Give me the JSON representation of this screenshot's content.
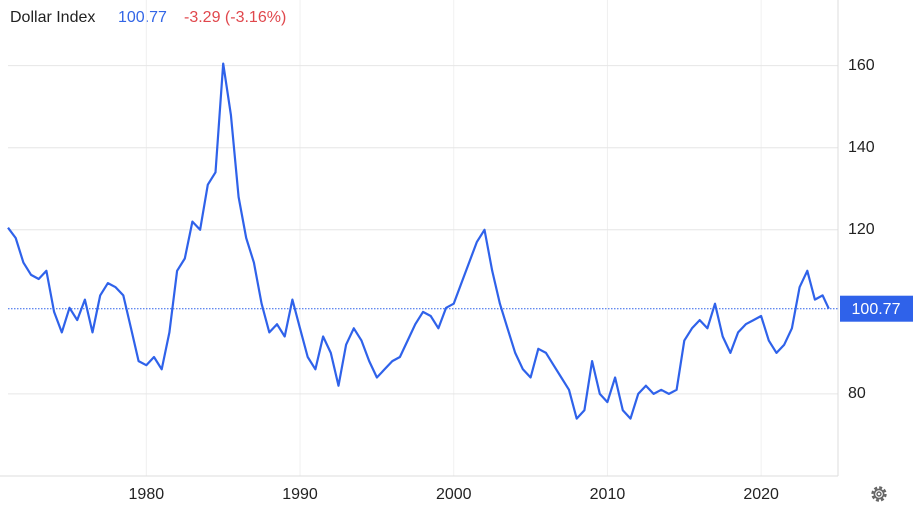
{
  "chart_data": {
    "type": "line",
    "title": "Dollar Index",
    "current_value": 100.77,
    "change": "-3.29 (-3.16%)",
    "x": [
      1971,
      1971.5,
      1972,
      1972.5,
      1973,
      1973.5,
      1974,
      1974.5,
      1975,
      1975.5,
      1976,
      1976.5,
      1977,
      1977.5,
      1978,
      1978.5,
      1979,
      1979.5,
      1980,
      1980.5,
      1981,
      1981.5,
      1982,
      1982.5,
      1983,
      1983.5,
      1984,
      1984.5,
      1985,
      1985.5,
      1986,
      1986.5,
      1987,
      1987.5,
      1988,
      1988.5,
      1989,
      1989.5,
      1990,
      1990.5,
      1991,
      1991.5,
      1992,
      1992.5,
      1993,
      1993.5,
      1994,
      1994.5,
      1995,
      1995.5,
      1996,
      1996.5,
      1997,
      1997.5,
      1998,
      1998.5,
      1999,
      1999.5,
      2000,
      2000.5,
      2001,
      2001.5,
      2002,
      2002.5,
      2003,
      2003.5,
      2004,
      2004.5,
      2005,
      2005.5,
      2006,
      2006.5,
      2007,
      2007.5,
      2008,
      2008.5,
      2009,
      2009.5,
      2010,
      2010.5,
      2011,
      2011.5,
      2012,
      2012.5,
      2013,
      2013.5,
      2014,
      2014.5,
      2015,
      2015.5,
      2016,
      2016.5,
      2017,
      2017.5,
      2018,
      2018.5,
      2019,
      2019.5,
      2020,
      2020.5,
      2021,
      2021.5,
      2022,
      2022.5,
      2023,
      2023.5,
      2024,
      2024.4
    ],
    "series": [
      {
        "name": "Dollar Index",
        "color": "#2f62ea",
        "values": [
          120.5,
          118,
          112,
          109,
          108,
          110,
          100,
          95,
          101,
          98,
          103,
          95,
          104,
          107,
          106,
          104,
          96,
          88,
          87,
          89,
          86,
          95,
          110,
          113,
          122,
          120,
          131,
          134,
          160.5,
          148,
          128,
          118,
          112,
          102,
          95,
          97,
          94,
          103,
          96,
          89,
          86,
          94,
          90,
          82,
          92,
          96,
          93,
          88,
          84,
          86,
          88,
          89,
          93,
          97,
          100,
          99,
          96,
          101,
          102,
          107,
          112,
          117,
          120,
          110,
          102,
          96,
          90,
          86,
          84,
          91,
          90,
          87,
          84,
          81,
          74,
          76,
          88,
          80,
          78,
          84,
          76,
          74,
          80,
          82,
          80,
          81,
          80,
          81,
          93,
          96,
          98,
          96,
          102,
          94,
          90,
          95,
          97,
          98,
          99,
          93,
          90,
          92,
          96,
          106,
          110,
          103,
          104,
          100.77
        ]
      }
    ],
    "xlim": [
      1971,
      2025
    ],
    "xticks": [
      1980,
      1990,
      2000,
      2010,
      2020
    ],
    "ylim": [
      60,
      176
    ],
    "yticks": [
      80,
      120,
      140,
      160
    ],
    "grid": true
  }
}
